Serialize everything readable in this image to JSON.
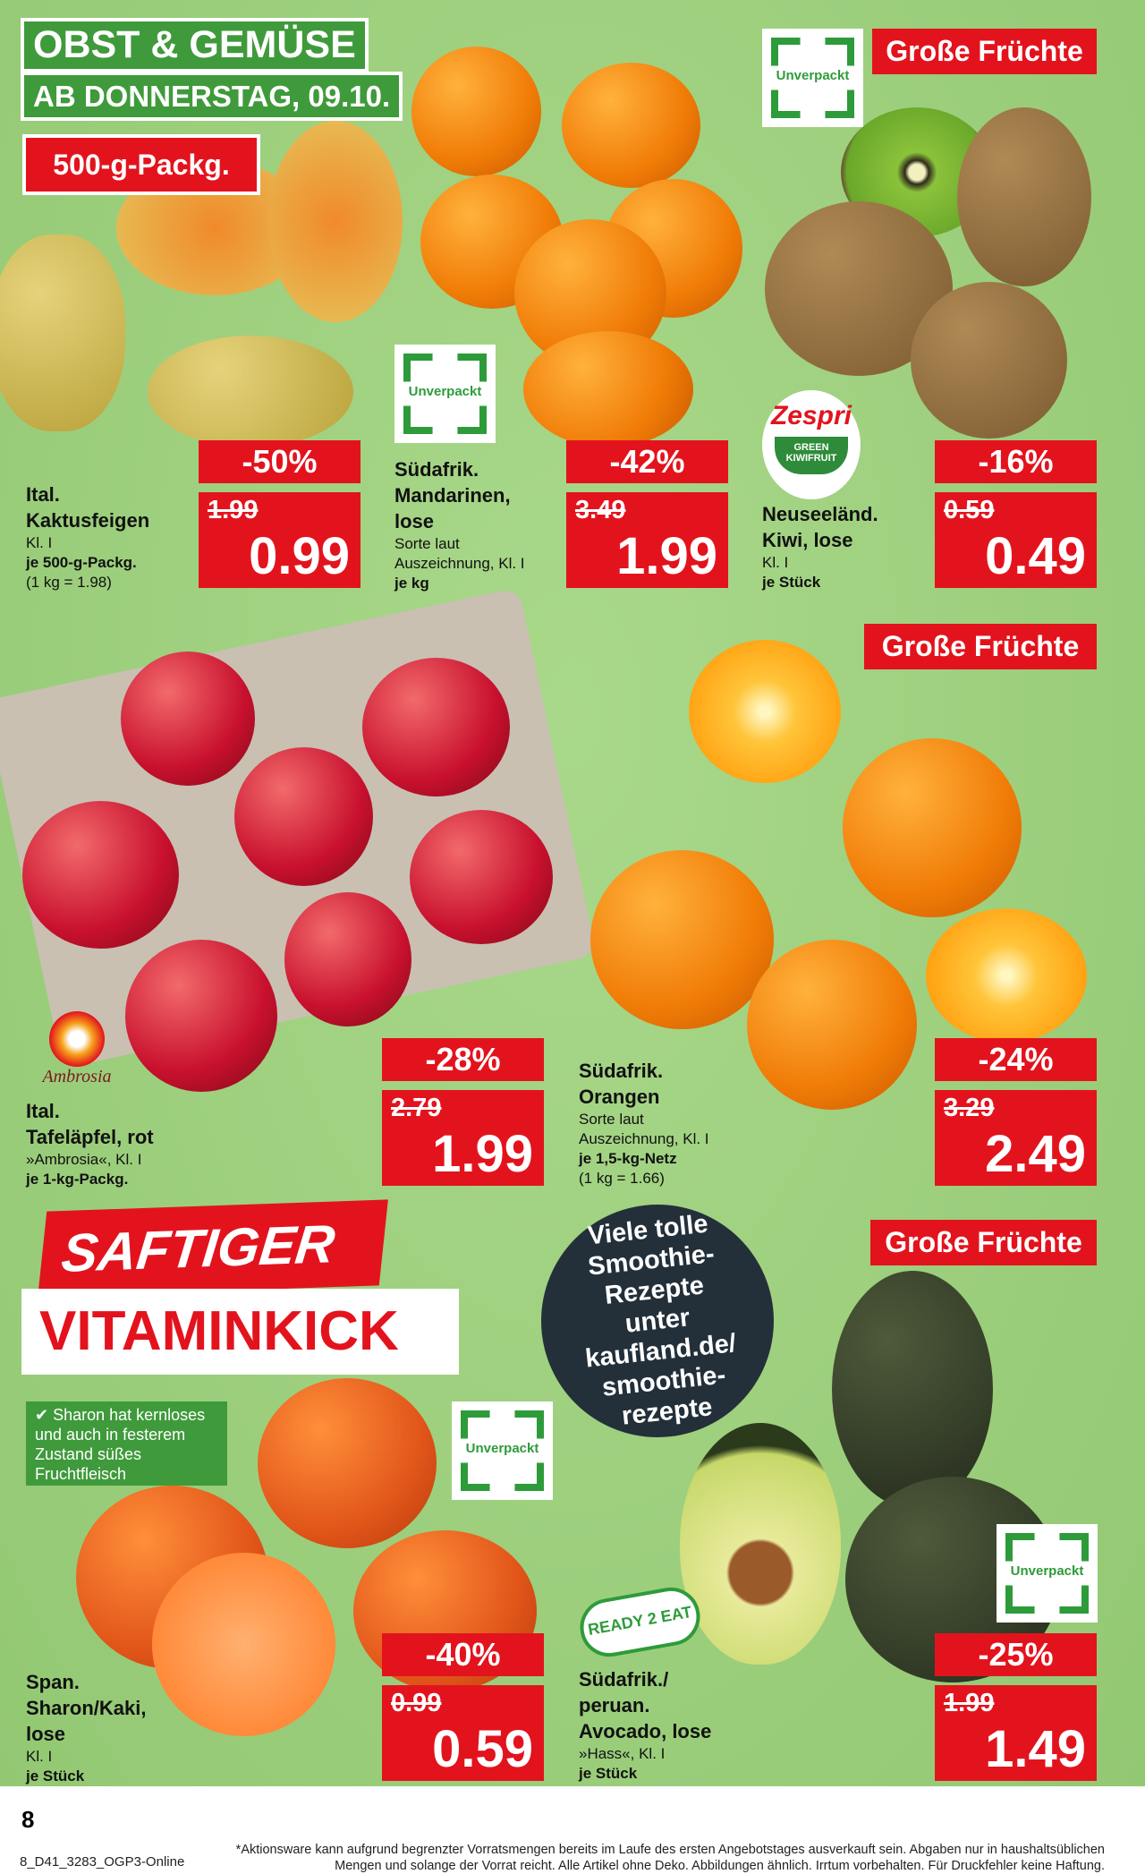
{
  "header": {
    "title": "OBST & GEMÜSE",
    "subtitle": "AB DONNERSTAG, 09.10."
  },
  "badges": {
    "pack": "500-g-Packg.",
    "big_fruit": "Große Früchte",
    "unverpackt": "Unverpackt",
    "zespri_top": "Zespri",
    "zespri_bottom": "GREEN KIWIFRUIT",
    "ambrosia": "Ambrosia",
    "ready2eat": "READY 2 EAT"
  },
  "products": [
    {
      "lines": [
        "Ital.",
        "Kaktusfeigen"
      ],
      "details": [
        "Kl. I"
      ],
      "unit": "je 500-g-Packg.",
      "base": "(1 kg = 1.98)",
      "discount": "-50%",
      "old": "1.99",
      "new": "0.99"
    },
    {
      "lines": [
        "Südafrik.",
        "Mandarinen,",
        "lose"
      ],
      "details": [
        "Sorte laut",
        "Auszeichnung, Kl. I"
      ],
      "unit": "je kg",
      "base": "",
      "discount": "-42%",
      "old": "3.49",
      "new": "1.99"
    },
    {
      "lines": [
        "Neuseeländ.",
        "Kiwi, lose"
      ],
      "details": [
        "Kl. I"
      ],
      "unit": "je Stück",
      "base": "",
      "discount": "-16%",
      "old": "0.59",
      "new": "0.49"
    },
    {
      "lines": [
        "Ital.",
        "Tafeläpfel, rot"
      ],
      "details": [
        "»Ambrosia«, Kl. I"
      ],
      "unit": "je 1-kg-Packg.",
      "base": "",
      "discount": "-28%",
      "old": "2.79",
      "new": "1.99"
    },
    {
      "lines": [
        "Südafrik.",
        "Orangen"
      ],
      "details": [
        "Sorte laut",
        "Auszeichnung, Kl. I"
      ],
      "unit": "je 1,5-kg-Netz",
      "base": "(1 kg = 1.66)",
      "discount": "-24%",
      "old": "3.29",
      "new": "2.49"
    },
    {
      "lines": [
        "Span.",
        "Sharon/Kaki,",
        "lose"
      ],
      "details": [
        "Kl. I"
      ],
      "unit": "je Stück",
      "base": "",
      "discount": "-40%",
      "old": "0.99",
      "new": "0.59"
    },
    {
      "lines": [
        "Südafrik./",
        "peruan.",
        "Avocado, lose"
      ],
      "details": [
        "»Hass«, Kl. I"
      ],
      "unit": "je Stück",
      "base": "",
      "discount": "-25%",
      "old": "1.99",
      "new": "1.49"
    }
  ],
  "promo": {
    "line1": "SAFTIGER",
    "line2": "VITAMINKICK",
    "note": "✔ Sharon hat kernloses und auch in festerem Zustand süßes Fruchtfleisch",
    "circle": "Viele tolle Smoothie-Rezepte unter kaufland.de/ smoothie-rezepte"
  },
  "footer": {
    "page": "8",
    "code": "8_D41_3283_OGP3-Online",
    "disclaimer1": "*Aktionsware kann aufgrund begrenzter Vorratsmengen bereits im Laufe des ersten Angebotstages ausverkauft sein. Abgaben nur in haushaltsüblichen",
    "disclaimer2": "Mengen und solange der Vorrat reicht. Alle Artikel ohne Deko. Abbildungen ähnlich. Irrtum vorbehalten. Für Druckfehler keine Haftung."
  },
  "colors": {
    "green_bg": "#9fd07f",
    "red": "#e3131d",
    "header_green": "#3f9a3b"
  }
}
